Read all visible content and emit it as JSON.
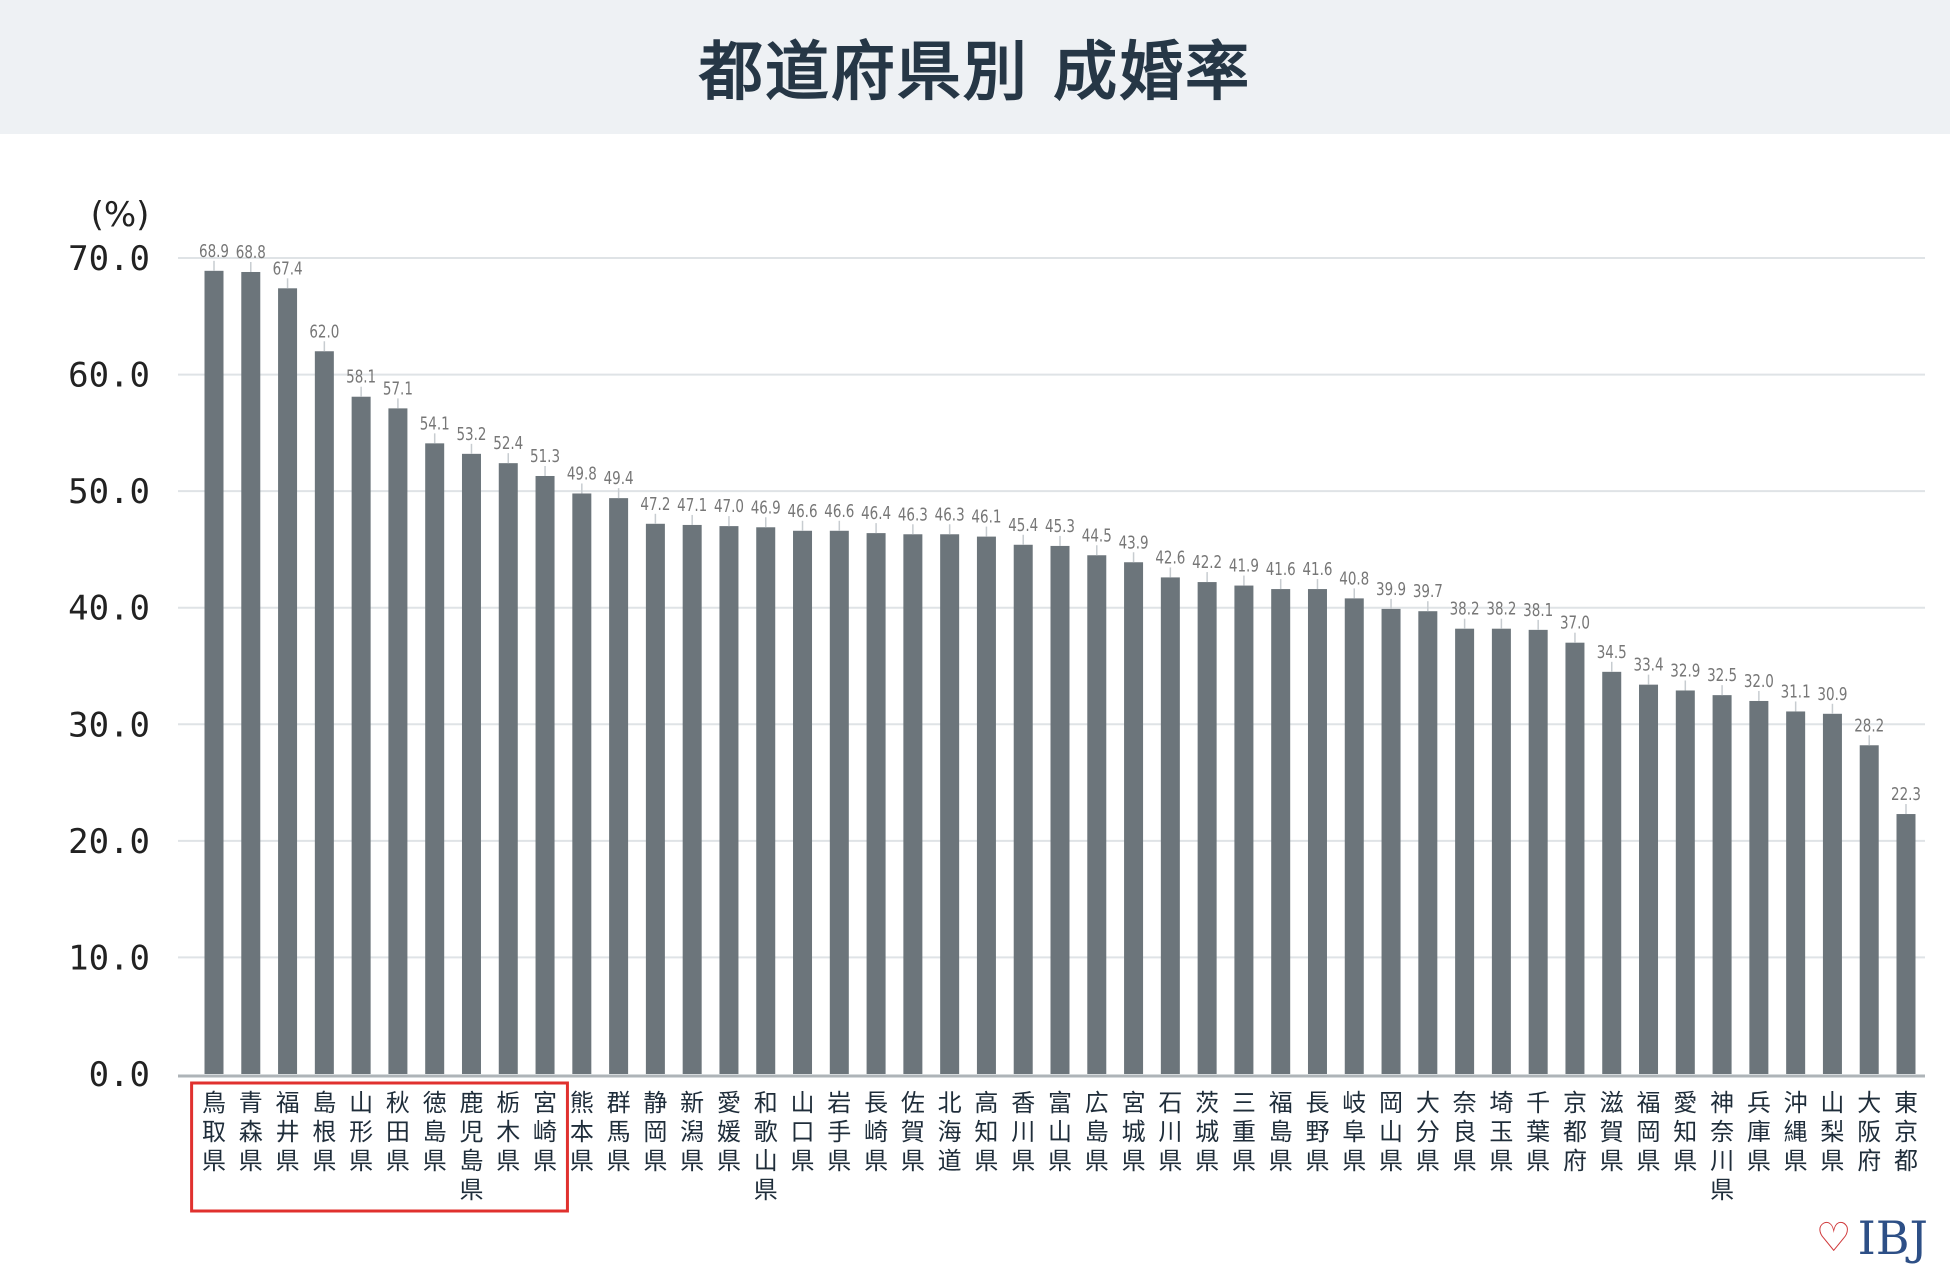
{
  "title": "都道府県別 成婚率",
  "logo": {
    "text": "IBJ",
    "icon": "heart-icon"
  },
  "chart_data": {
    "type": "bar",
    "ylabel": "(%)",
    "ylim": [
      0,
      70
    ],
    "yticks": [
      "0.0",
      "10.0",
      "20.0",
      "30.0",
      "40.0",
      "50.0",
      "60.0",
      "70.0"
    ],
    "grid": true,
    "bar_color": "#6c757b",
    "highlight_color": "#e0312e",
    "highlight_count": 10,
    "categories": [
      "鳥取県",
      "青森県",
      "福井県",
      "島根県",
      "山形県",
      "秋田県",
      "徳島県",
      "鹿児島県",
      "栃木県",
      "宮崎県",
      "熊本県",
      "群馬県",
      "静岡県",
      "新潟県",
      "愛媛県",
      "和歌山県",
      "山口県",
      "岩手県",
      "長崎県",
      "佐賀県",
      "北海道",
      "高知県",
      "香川県",
      "富山県",
      "広島県",
      "宮城県",
      "石川県",
      "茨城県",
      "三重県",
      "福島県",
      "長野県",
      "岐阜県",
      "岡山県",
      "大分県",
      "奈良県",
      "埼玉県",
      "千葉県",
      "京都府",
      "滋賀県",
      "福岡県",
      "愛知県",
      "神奈川県",
      "兵庫県",
      "沖縄県",
      "山梨県",
      "大阪府",
      "東京都"
    ],
    "values": [
      68.9,
      68.8,
      67.4,
      62.0,
      58.1,
      57.1,
      54.1,
      53.2,
      52.4,
      51.3,
      49.8,
      49.4,
      47.2,
      47.1,
      47.0,
      46.9,
      46.6,
      46.6,
      46.4,
      46.3,
      46.3,
      46.1,
      45.4,
      45.3,
      44.5,
      43.9,
      42.6,
      42.2,
      41.9,
      41.6,
      41.6,
      40.8,
      39.9,
      39.7,
      38.2,
      38.2,
      38.1,
      37.0,
      34.5,
      33.4,
      32.9,
      32.5,
      32.0,
      31.1,
      30.9,
      28.2,
      22.3
    ],
    "value_labels": [
      "68.9",
      "68.8",
      "67.4",
      "62.0",
      "58.1",
      "57.1",
      "54.1",
      "53.2",
      "52.4",
      "51.3",
      "49.8",
      "49.4",
      "47.2",
      "47.1",
      "47.0",
      "46.9",
      "46.6",
      "46.6",
      "46.4",
      "46.3",
      "46.3",
      "46.1",
      "45.4",
      "45.3",
      "44.5",
      "43.9",
      "42.6",
      "42.2",
      "41.9",
      "41.6",
      "41.6",
      "40.8",
      "39.9",
      "39.7",
      "38.2",
      "38.2",
      "38.1",
      "37.0",
      "34.5",
      "33.4",
      "32.9",
      "32.5",
      "32.0",
      "31.1",
      "30.9",
      "28.2",
      "22.3"
    ]
  }
}
